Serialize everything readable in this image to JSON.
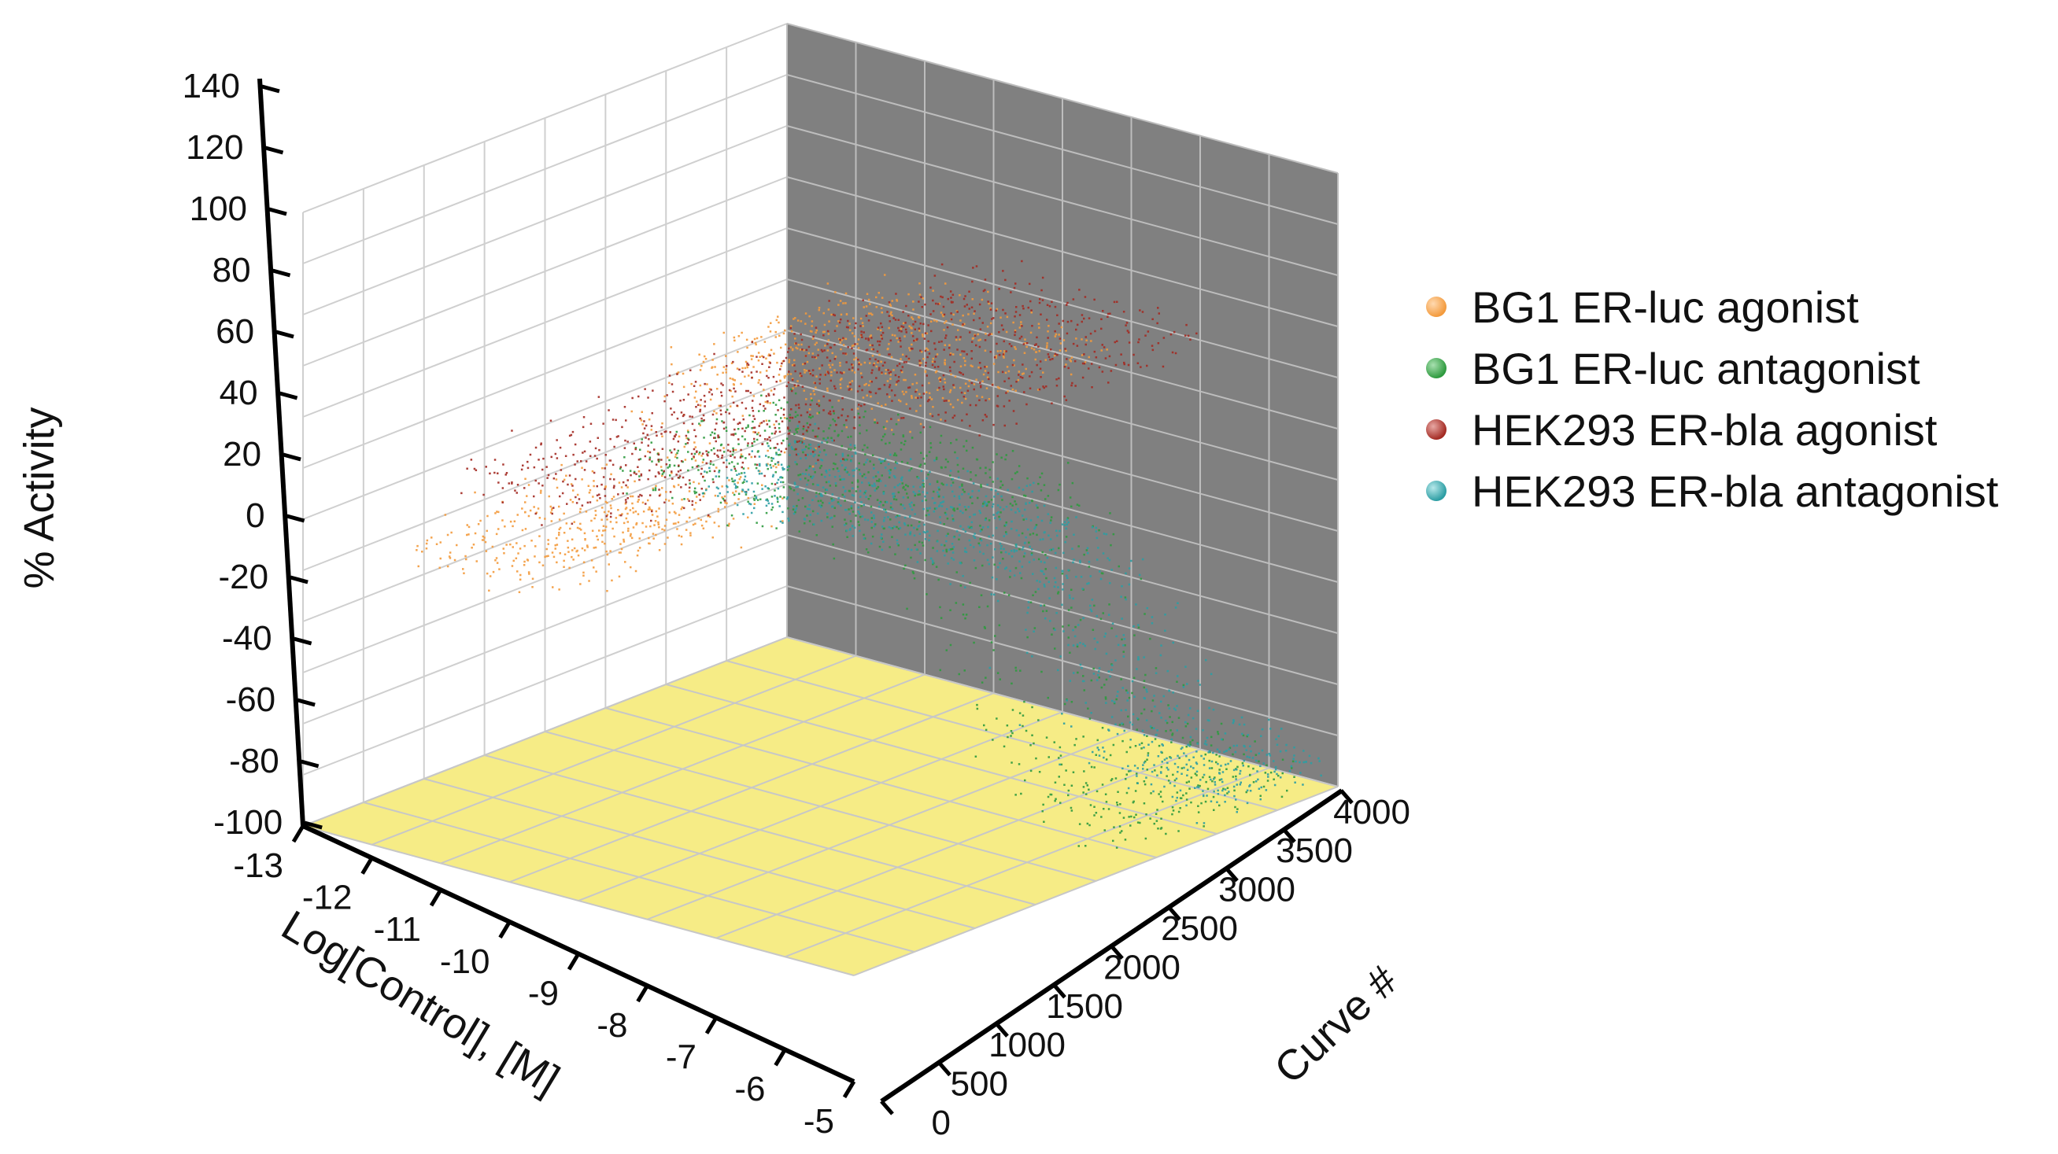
{
  "chart_data": {
    "type": "scatter",
    "title": "",
    "zlabel": "% Activity",
    "xlabel": "Log[Control], [M]",
    "ylabel": "Curve #",
    "zlim": [
      -100,
      140
    ],
    "xlim": [
      -13,
      -5
    ],
    "ylim": [
      0,
      4000
    ],
    "z_ticks": [
      "140",
      "120",
      "100",
      "80",
      "60",
      "40",
      "20",
      "0",
      "-20",
      "-40",
      "-60",
      "-80",
      "-100"
    ],
    "x_ticks": [
      "-13",
      "-12",
      "-11",
      "-10",
      "-9",
      "-8",
      "-7",
      "-6",
      "-5"
    ],
    "y_ticks": [
      "0",
      "500",
      "1000",
      "1500",
      "2000",
      "2500",
      "3000",
      "3500",
      "4000"
    ],
    "legend_position": "right",
    "series": [
      {
        "name": "BG1 ER-luc agonist",
        "color": "#f39a3c",
        "curve_range": [
          1800,
          3400
        ],
        "bottom": 0,
        "top": 105,
        "logAC50": -9.5
      },
      {
        "name": "BG1 ER-luc antagonist",
        "color": "#2e9a3e",
        "curve_range": [
          200,
          1700
        ],
        "bottom": 0,
        "top": -90,
        "logAC50": -7.5
      },
      {
        "name": "HEK293 ER-bla agonist",
        "color": "#a32a22",
        "curve_range": [
          1000,
          3000
        ],
        "bottom": 20,
        "top": 95,
        "logAC50": -9.5
      },
      {
        "name": "HEK293 ER-bla antagonist",
        "color": "#2b9da3",
        "curve_range": [
          0,
          1000
        ],
        "bottom": -20,
        "top": -90,
        "logAC50": -7.5
      }
    ]
  },
  "legend": {
    "items": [
      {
        "label": "BG1 ER-luc agonist",
        "color": "#f39a3c"
      },
      {
        "label": "BG1 ER-luc antagonist",
        "color": "#2e9a3e"
      },
      {
        "label": "HEK293 ER-bla agonist",
        "color": "#a32a22"
      },
      {
        "label": "HEK293 ER-bla antagonist",
        "color": "#2b9da3"
      }
    ]
  },
  "colors": {
    "floor": "#f6ec86",
    "back_wall": "#808080",
    "left_wall": "#ffffff"
  }
}
